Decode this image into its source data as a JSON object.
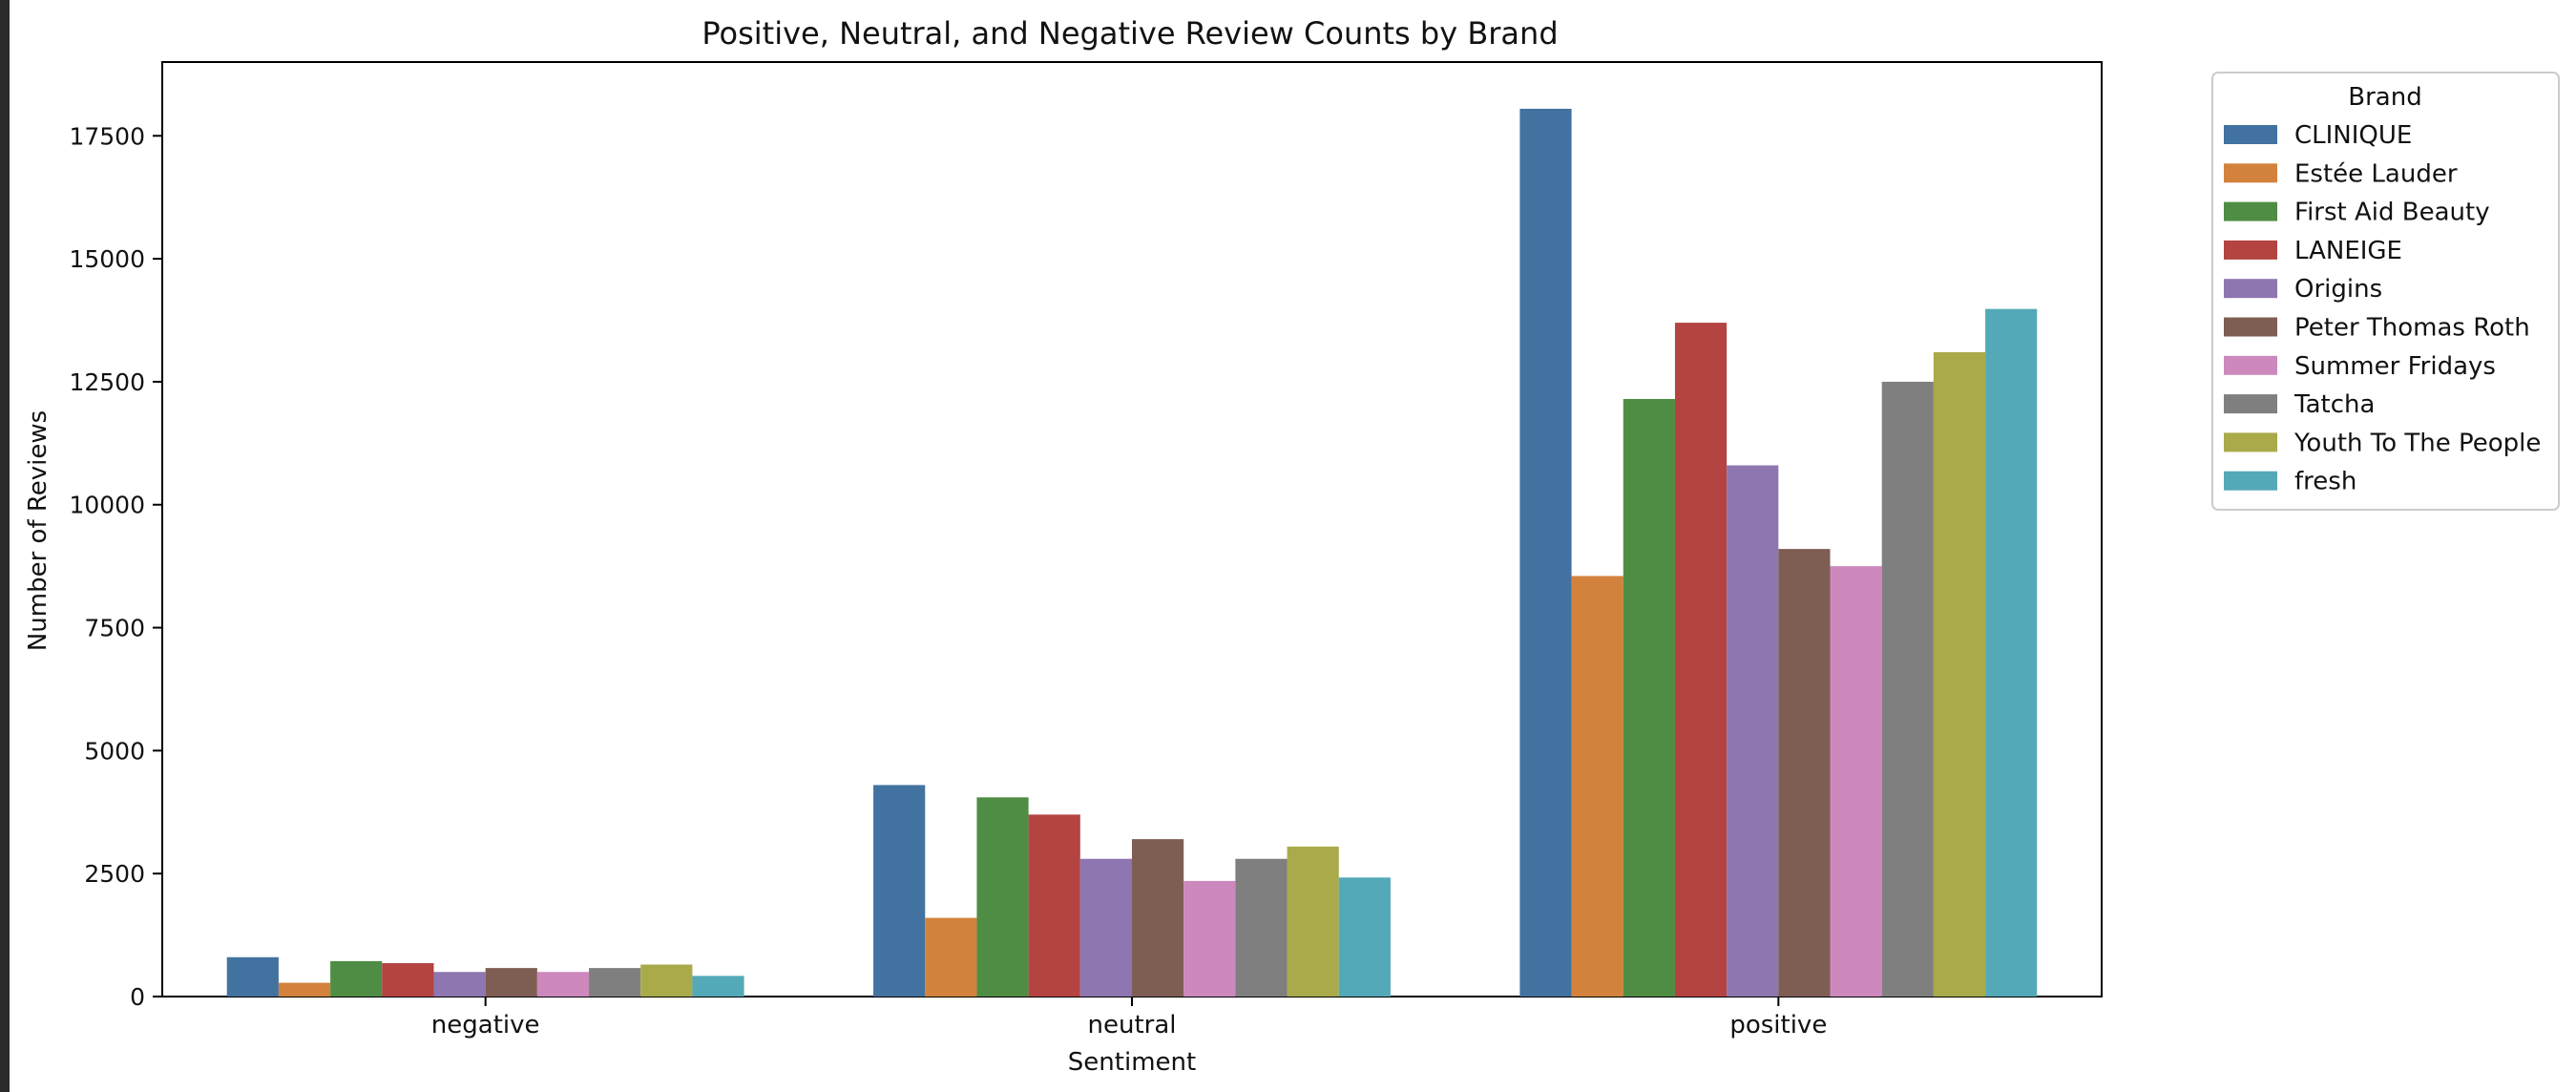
{
  "chart_data": {
    "type": "bar",
    "title": "Positive, Neutral, and Negative Review Counts by Brand",
    "xlabel": "Sentiment",
    "ylabel": "Number of Reviews",
    "categories": [
      "negative",
      "neutral",
      "positive"
    ],
    "ylim": [
      0,
      19000
    ],
    "yticks": [
      0,
      2500,
      5000,
      7500,
      10000,
      12500,
      15000,
      17500
    ],
    "ytick_labels": [
      "0",
      "2500",
      "5000",
      "7500",
      "10000",
      "12500",
      "15000",
      "17500"
    ],
    "grid": false,
    "legend": {
      "title": "Brand",
      "placement": "outside-top-right"
    },
    "series": [
      {
        "name": "CLINIQUE",
        "color": "#4272a0",
        "values": [
          800,
          4300,
          18050
        ]
      },
      {
        "name": "Estée Lauder",
        "color": "#d3823d",
        "values": [
          280,
          1600,
          8550
        ]
      },
      {
        "name": "First Aid Beauty",
        "color": "#4f8d44",
        "values": [
          720,
          4050,
          12150
        ]
      },
      {
        "name": "LANEIGE",
        "color": "#b34442",
        "values": [
          680,
          3700,
          13700
        ]
      },
      {
        "name": "Origins",
        "color": "#8e76b0",
        "values": [
          500,
          2800,
          10800
        ]
      },
      {
        "name": "Peter Thomas Roth",
        "color": "#7e5e53",
        "values": [
          580,
          3200,
          9100
        ]
      },
      {
        "name": "Summer Fridays",
        "color": "#cd88bd",
        "values": [
          500,
          2350,
          8750
        ]
      },
      {
        "name": "Tatcha",
        "color": "#7f7f7f",
        "values": [
          580,
          2800,
          12500
        ]
      },
      {
        "name": "Youth To The People",
        "color": "#aaaa4b",
        "values": [
          650,
          3050,
          13100
        ]
      },
      {
        "name": "fresh",
        "color": "#54a9b8",
        "values": [
          420,
          2420,
          13980
        ]
      }
    ]
  }
}
